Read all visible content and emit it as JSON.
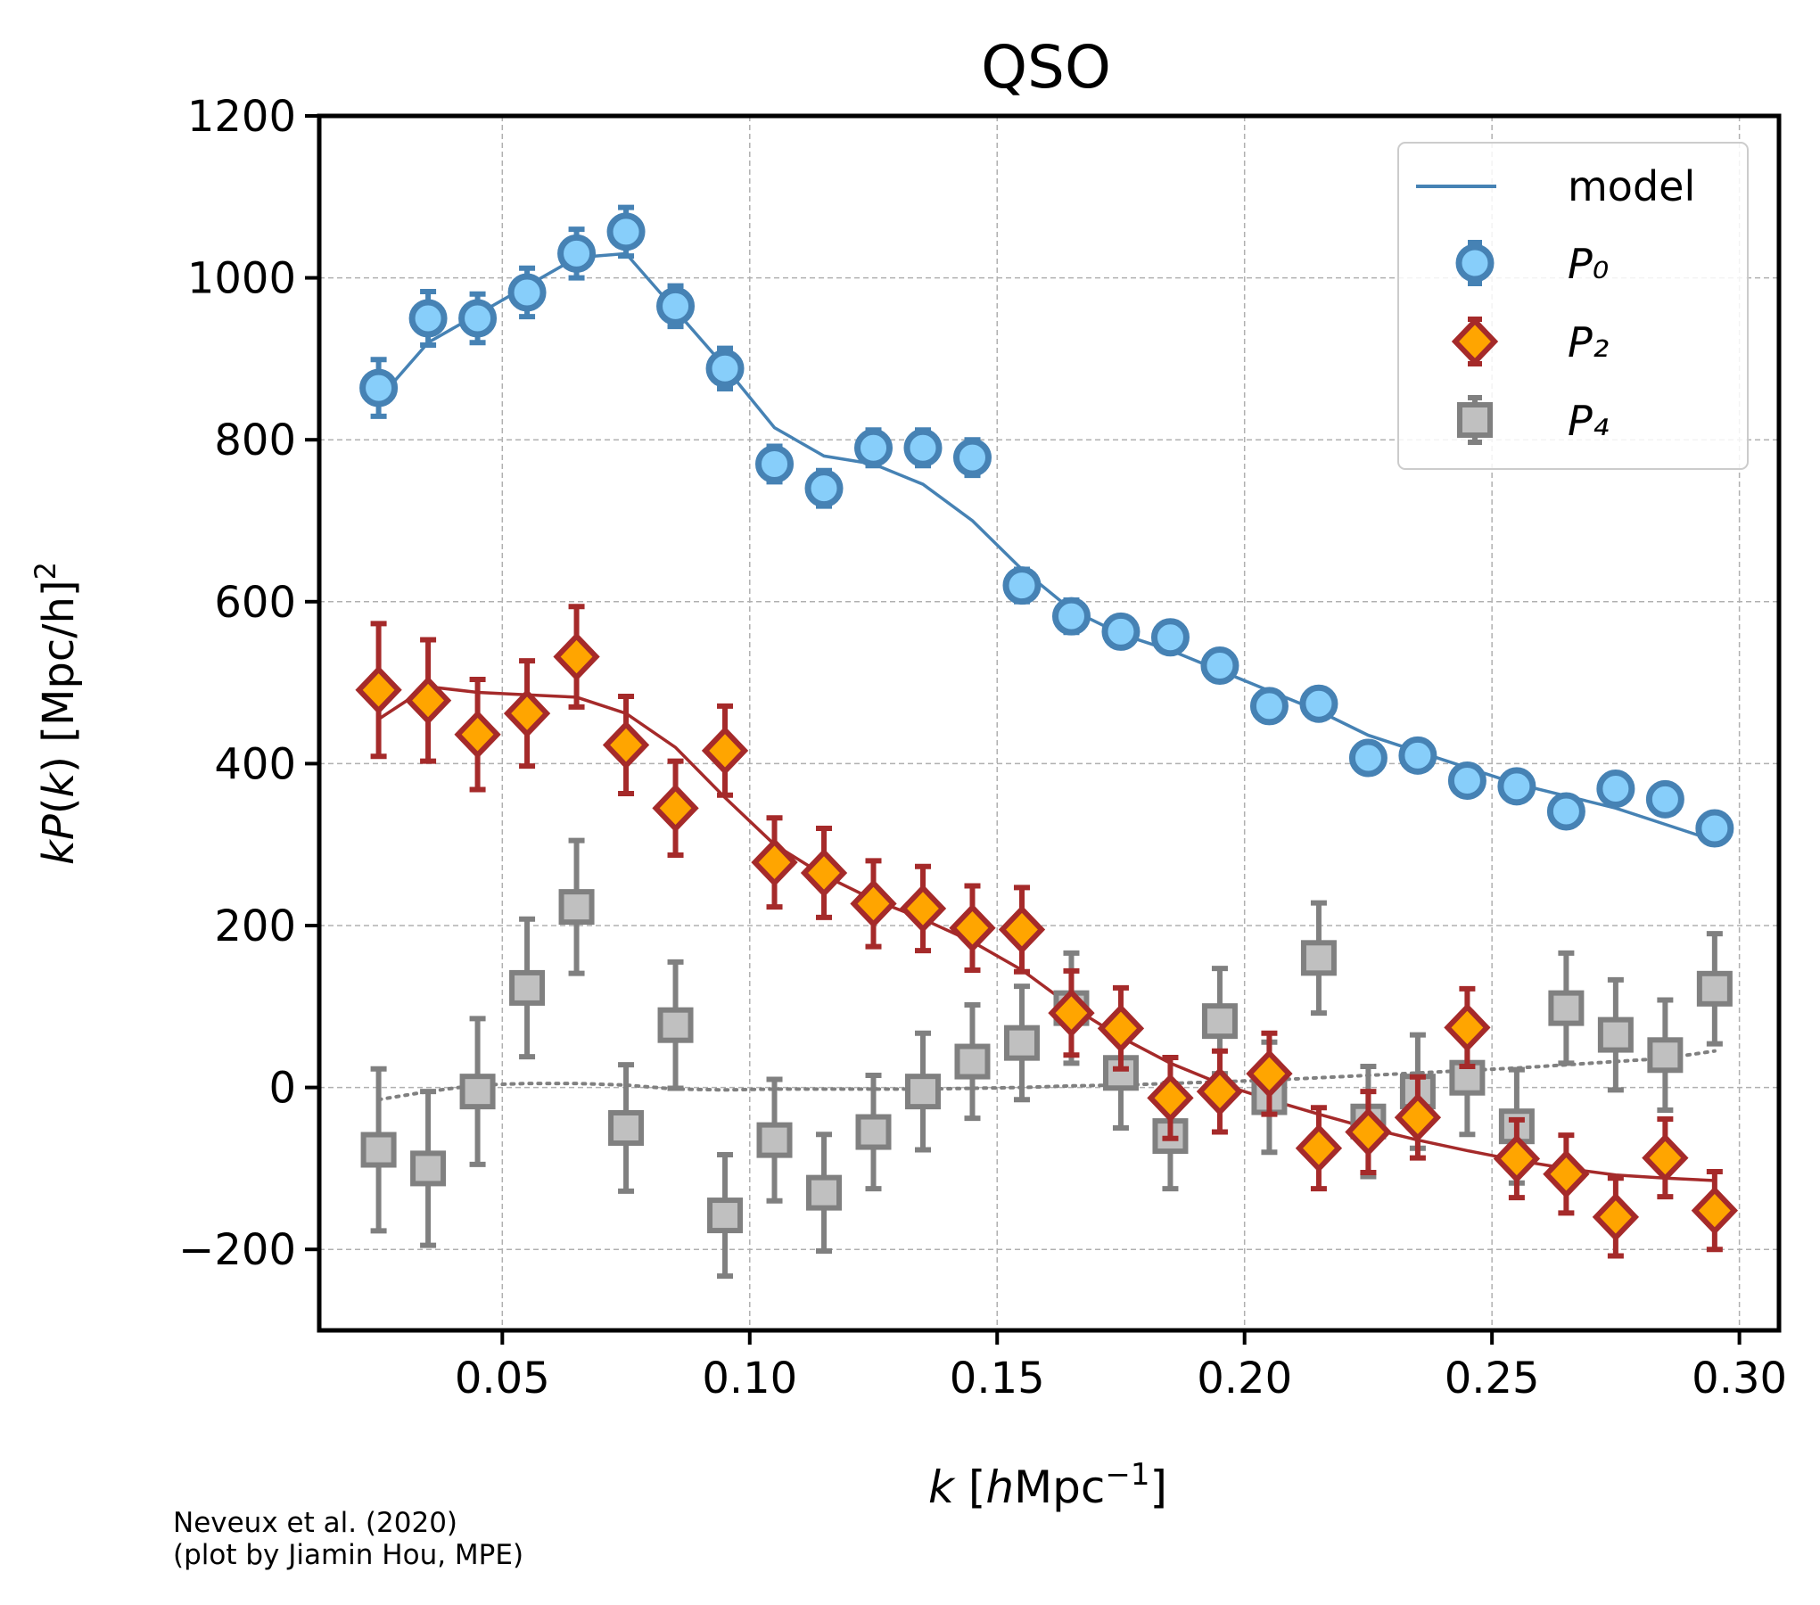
{
  "chart_data": {
    "type": "scatter",
    "title": "QSO",
    "xlabel": "k [hMpc⁻¹]",
    "ylabel": "kP(k) [Mpc/h]²",
    "xlim": [
      0.013,
      0.308
    ],
    "ylim": [
      -300,
      1200
    ],
    "xticks": [
      0.05,
      0.1,
      0.15,
      0.2,
      0.25,
      0.3
    ],
    "xtick_labels": [
      "0.05",
      "0.10",
      "0.15",
      "0.20",
      "0.25",
      "0.30"
    ],
    "yticks": [
      -200,
      0,
      200,
      400,
      600,
      800,
      1000,
      1200
    ],
    "ytick_labels": [
      "−200",
      "0",
      "200",
      "400",
      "600",
      "800",
      "1000",
      "1200"
    ],
    "grid": true,
    "legend_position": "top-right",
    "x": [
      0.025,
      0.035,
      0.045,
      0.055,
      0.065,
      0.075,
      0.085,
      0.095,
      0.105,
      0.115,
      0.125,
      0.135,
      0.145,
      0.155,
      0.165,
      0.175,
      0.185,
      0.195,
      0.205,
      0.215,
      0.225,
      0.235,
      0.245,
      0.255,
      0.265,
      0.275,
      0.285,
      0.295
    ],
    "series": [
      {
        "name": "P0",
        "marker": "circle",
        "color": "#4682b4",
        "fill": "#87cefa",
        "values": [
          864,
          950,
          950,
          982,
          1030,
          1057,
          965,
          888,
          770,
          740,
          790,
          790,
          778,
          620,
          582,
          563,
          556,
          521,
          471,
          474,
          407,
          410,
          379,
          372,
          341,
          369,
          356,
          320
        ],
        "errors": [
          35,
          33,
          30,
          30,
          30,
          30,
          25,
          25,
          22,
          22,
          22,
          22,
          22,
          20,
          20,
          18,
          18,
          18,
          18,
          18,
          16,
          16,
          16,
          16,
          15,
          15,
          15,
          15
        ]
      },
      {
        "name": "P2",
        "marker": "diamond",
        "color": "#a52a2a",
        "fill": "#ffa500",
        "values": [
          491,
          478,
          436,
          462,
          532,
          423,
          345,
          416,
          278,
          265,
          227,
          221,
          197,
          195,
          92,
          73,
          -13,
          -5,
          17,
          -75,
          -55,
          -37,
          74,
          -88,
          -107,
          -160,
          -87,
          -152
        ],
        "errors": [
          82,
          75,
          68,
          65,
          62,
          60,
          58,
          55,
          55,
          55,
          53,
          52,
          52,
          52,
          52,
          50,
          50,
          50,
          50,
          50,
          50,
          50,
          48,
          48,
          48,
          48,
          48,
          48
        ]
      },
      {
        "name": "P4",
        "marker": "square",
        "color": "#808080",
        "fill": "#c0c0c0",
        "values": [
          -77,
          -100,
          -5,
          123,
          223,
          -50,
          77,
          -158,
          -65,
          -130,
          -55,
          -5,
          32,
          55,
          98,
          18,
          -60,
          82,
          -12,
          160,
          -42,
          -5,
          12,
          -48,
          98,
          65,
          40,
          122
        ],
        "errors": [
          100,
          95,
          90,
          85,
          82,
          78,
          78,
          75,
          75,
          72,
          70,
          72,
          70,
          70,
          68,
          68,
          65,
          65,
          68,
          68,
          68,
          70,
          70,
          70,
          68,
          68,
          68,
          68
        ]
      }
    ],
    "models": [
      {
        "name": "model",
        "color": "#4682b4",
        "style": "solid",
        "x": [
          0.025,
          0.035,
          0.045,
          0.055,
          0.065,
          0.075,
          0.085,
          0.095,
          0.105,
          0.115,
          0.125,
          0.135,
          0.145,
          0.155,
          0.165,
          0.175,
          0.185,
          0.195,
          0.205,
          0.215,
          0.225,
          0.235,
          0.245,
          0.255,
          0.265,
          0.275,
          0.285,
          0.295
        ],
        "values": [
          850,
          920,
          955,
          990,
          1025,
          1030,
          960,
          890,
          815,
          780,
          770,
          745,
          700,
          640,
          590,
          560,
          540,
          515,
          490,
          465,
          435,
          415,
          395,
          375,
          360,
          345,
          325,
          305
        ]
      },
      {
        "name": "",
        "color": "#a52a2a",
        "style": "solid",
        "x": [
          0.025,
          0.035,
          0.045,
          0.055,
          0.065,
          0.075,
          0.085,
          0.095,
          0.105,
          0.115,
          0.125,
          0.135,
          0.145,
          0.155,
          0.165,
          0.175,
          0.185,
          0.195,
          0.205,
          0.215,
          0.225,
          0.235,
          0.245,
          0.255,
          0.265,
          0.275,
          0.285,
          0.295
        ],
        "values": [
          455,
          495,
          488,
          485,
          482,
          462,
          420,
          358,
          300,
          262,
          232,
          208,
          180,
          145,
          100,
          62,
          30,
          5,
          -15,
          -33,
          -50,
          -65,
          -78,
          -90,
          -100,
          -108,
          -112,
          -115
        ]
      },
      {
        "name": "",
        "color": "#808080",
        "style": "dotted",
        "x": [
          0.025,
          0.035,
          0.045,
          0.055,
          0.065,
          0.075,
          0.085,
          0.095,
          0.105,
          0.115,
          0.125,
          0.135,
          0.145,
          0.155,
          0.165,
          0.175,
          0.185,
          0.195,
          0.205,
          0.215,
          0.225,
          0.235,
          0.245,
          0.255,
          0.265,
          0.275,
          0.285,
          0.295
        ],
        "values": [
          -15,
          -5,
          3,
          5,
          5,
          3,
          -2,
          -3,
          -2,
          -2,
          -2,
          -2,
          -1,
          0,
          2,
          3,
          5,
          7,
          9,
          12,
          15,
          18,
          21,
          24,
          28,
          32,
          36,
          45
        ]
      }
    ]
  },
  "legend": {
    "model_label": "model",
    "p0_label": "P₀",
    "p2_label": "P₂",
    "p4_label": "P₄"
  },
  "credit": {
    "line1": "Neveux et al. (2020)",
    "line2": "(plot by Jiamin Hou, MPE)"
  }
}
